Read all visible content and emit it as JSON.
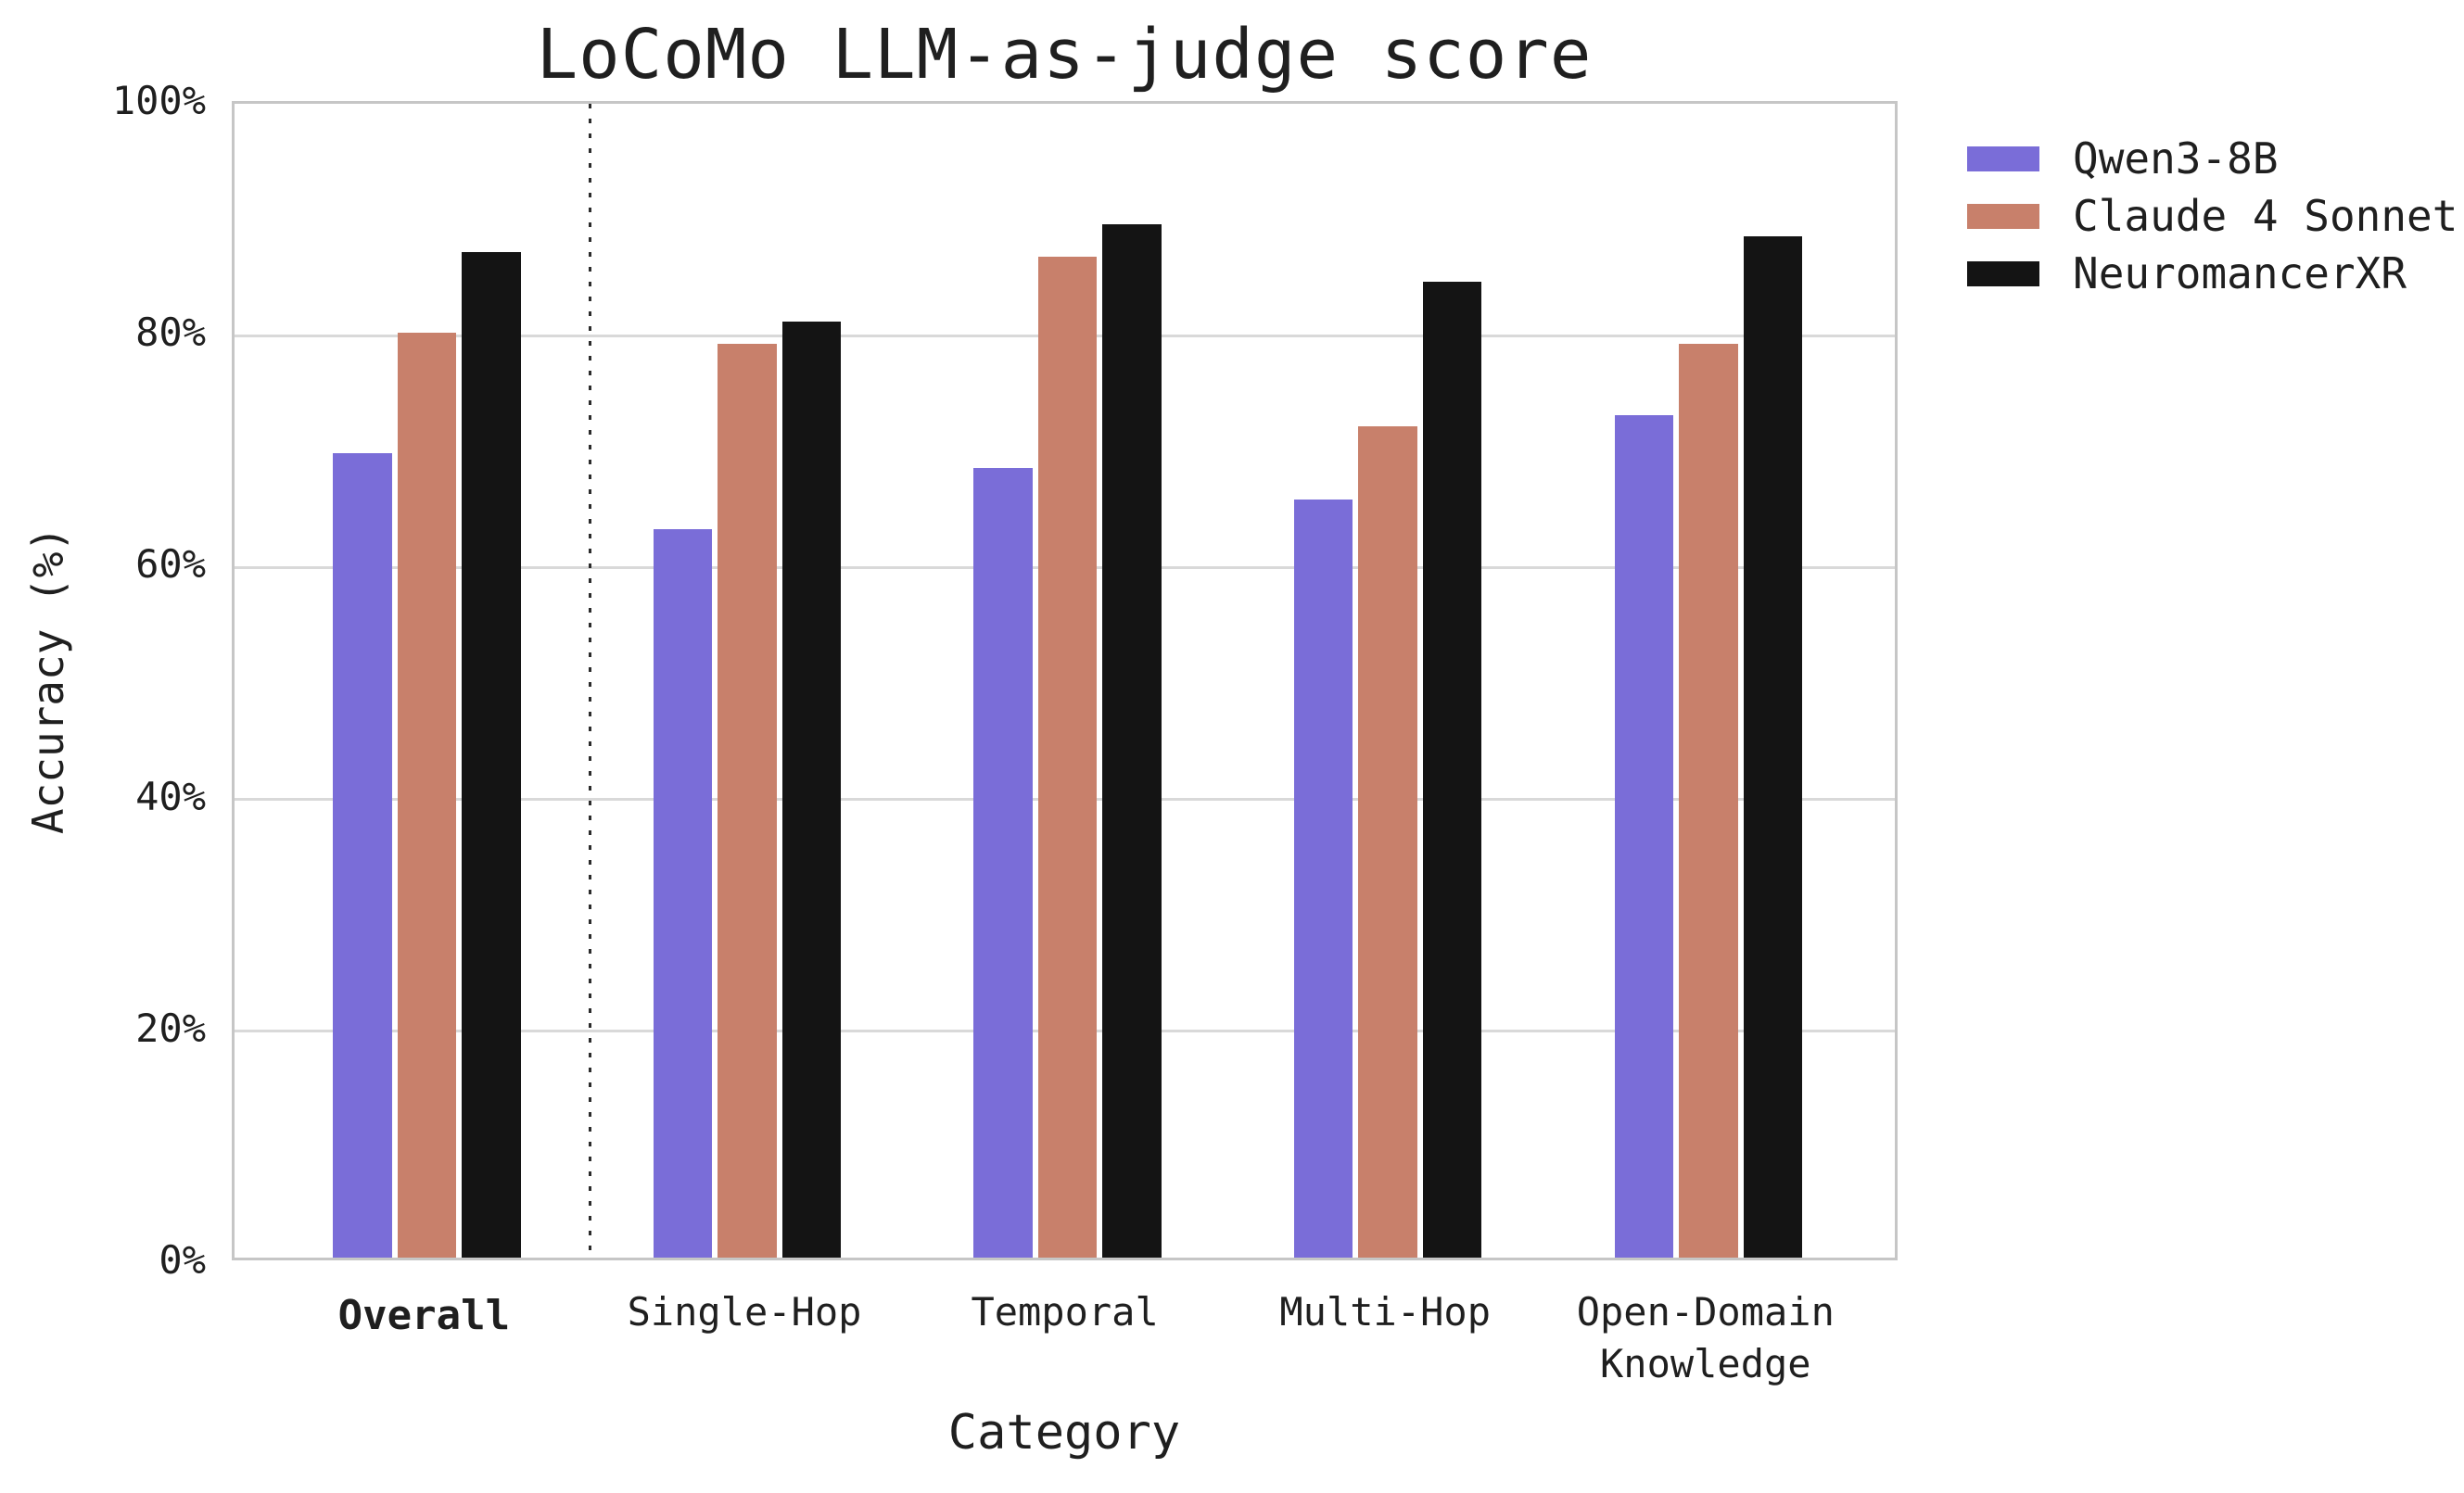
{
  "chart_data": {
    "type": "bar",
    "title": "LoCoMo LLM-as-judge score",
    "xlabel": "Category",
    "ylabel": "Accuracy (%)",
    "ylim": [
      0,
      100
    ],
    "grid": "horizontal",
    "legend_position": "outside-upper-right",
    "yticks": [
      {
        "value": 0,
        "label": "0%"
      },
      {
        "value": 20,
        "label": "20%"
      },
      {
        "value": 40,
        "label": "40%"
      },
      {
        "value": 60,
        "label": "60%"
      },
      {
        "value": 80,
        "label": "80%"
      },
      {
        "value": 100,
        "label": "100%"
      }
    ],
    "categories": [
      {
        "label": "Overall",
        "bold": true
      },
      {
        "label": "Single-Hop",
        "bold": false
      },
      {
        "label": "Temporal",
        "bold": false
      },
      {
        "label": "Multi-Hop",
        "bold": false
      },
      {
        "label": "Open-Domain\nKnowledge",
        "bold": false
      }
    ],
    "separator_after_category_index": 0,
    "series": [
      {
        "name": "Qwen3-8B",
        "color": "#7a6dd8",
        "values": [
          69.4,
          62.8,
          68.1,
          65.4,
          72.7
        ]
      },
      {
        "name": "Claude 4 Sonnet",
        "color": "#c8806b",
        "values": [
          79.8,
          78.8,
          86.3,
          71.7,
          78.8
        ]
      },
      {
        "name": "NeuromancerXR",
        "color": "#141414",
        "values": [
          86.7,
          80.7,
          89.1,
          84.2,
          88.1
        ]
      }
    ]
  }
}
